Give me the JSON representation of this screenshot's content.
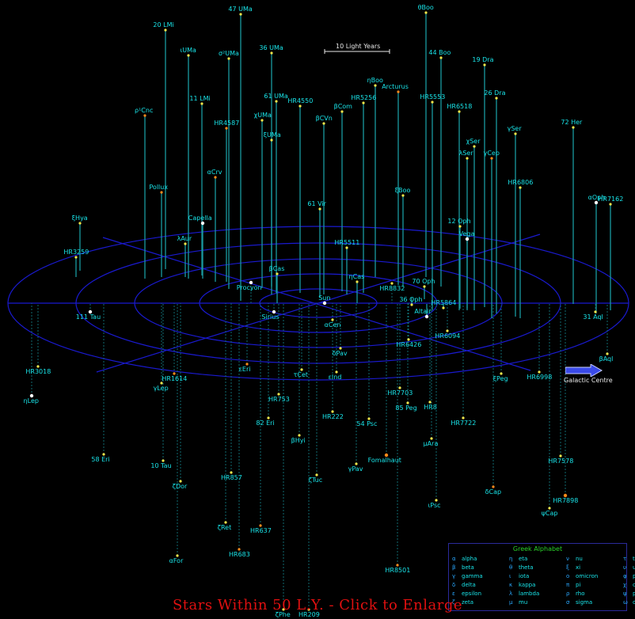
{
  "scale_label": "10 Light Years",
  "direction_label": "Galactic Centre",
  "footer_link": "Stars Within 50 L.Y. - Click to Enlarge",
  "legend": {
    "title": "Greek Alphabet",
    "letters": [
      {
        "sym": "α",
        "name": "alpha"
      },
      {
        "sym": "β",
        "name": "beta"
      },
      {
        "sym": "γ",
        "name": "gamma"
      },
      {
        "sym": "δ",
        "name": "delta"
      },
      {
        "sym": "ε",
        "name": "epsilon"
      },
      {
        "sym": "ζ",
        "name": "zeta"
      },
      {
        "sym": "η",
        "name": "eta"
      },
      {
        "sym": "θ",
        "name": "theta"
      },
      {
        "sym": "ι",
        "name": "iota"
      },
      {
        "sym": "κ",
        "name": "kappa"
      },
      {
        "sym": "λ",
        "name": "lambda"
      },
      {
        "sym": "μ",
        "name": "mu"
      },
      {
        "sym": "ν",
        "name": "nu"
      },
      {
        "sym": "ξ",
        "name": "xi"
      },
      {
        "sym": "ο",
        "name": "omicron"
      },
      {
        "sym": "π",
        "name": "pi"
      },
      {
        "sym": "ρ",
        "name": "rho"
      },
      {
        "sym": "σ",
        "name": "sigma"
      },
      {
        "sym": "τ",
        "name": "tau"
      },
      {
        "sym": "υ",
        "name": "upsilon"
      },
      {
        "sym": "φ",
        "name": "phi"
      },
      {
        "sym": "χ",
        "name": "chi"
      },
      {
        "sym": "ψ",
        "name": "psi"
      },
      {
        "sym": "ω",
        "name": "omega"
      }
    ]
  },
  "stars": [
    {
      "name": "θBoo",
      "above": true
    },
    {
      "name": "47 UMa",
      "above": true
    },
    {
      "name": "20 LMi",
      "above": true
    },
    {
      "name": "ιUMa",
      "above": true
    },
    {
      "name": "σ²UMa",
      "above": true
    },
    {
      "name": "36 UMa",
      "above": true
    },
    {
      "name": "44 Boo",
      "above": true
    },
    {
      "name": "19 Dra",
      "above": true
    },
    {
      "name": "ηBoo",
      "above": true
    },
    {
      "name": "Arcturus",
      "above": true
    },
    {
      "name": "ρ¹Cnc",
      "above": true
    },
    {
      "name": "11 LMi",
      "above": true
    },
    {
      "name": "61 UMa",
      "above": true
    },
    {
      "name": "HR4550",
      "above": true
    },
    {
      "name": "HR5256",
      "above": true
    },
    {
      "name": "HR5553",
      "above": true
    },
    {
      "name": "26 Dra",
      "above": true
    },
    {
      "name": "72 Her",
      "above": true
    },
    {
      "name": "βCVn",
      "above": true
    },
    {
      "name": "βCom",
      "above": true
    },
    {
      "name": "HR6518",
      "above": true
    },
    {
      "name": "HR4587",
      "above": true
    },
    {
      "name": "χUMa",
      "above": true
    },
    {
      "name": "γSer",
      "above": true
    },
    {
      "name": "ξUMa",
      "above": true
    },
    {
      "name": "χSer",
      "above": true
    },
    {
      "name": "λSer",
      "above": true
    },
    {
      "name": "ξBoo",
      "above": true
    },
    {
      "name": "γCep",
      "above": true
    },
    {
      "name": "αCrv",
      "above": true
    },
    {
      "name": "Pollux",
      "above": true
    },
    {
      "name": "HR6806",
      "above": true
    },
    {
      "name": "αOph",
      "above": true
    },
    {
      "name": "HR7162",
      "above": true
    },
    {
      "name": "ξHya",
      "above": true
    },
    {
      "name": "HR3259",
      "above": true
    },
    {
      "name": "Capella",
      "above": true
    },
    {
      "name": "λAur",
      "above": true
    },
    {
      "name": "61 Vir",
      "above": true
    },
    {
      "name": "12 Oph",
      "above": true
    },
    {
      "name": "Vega",
      "above": true
    },
    {
      "name": "HR5511",
      "above": true
    },
    {
      "name": "36 Oph",
      "above": true
    },
    {
      "name": "70 Oph",
      "above": true
    },
    {
      "name": "Sun",
      "above": true
    },
    {
      "name": "Altair",
      "above": true
    },
    {
      "name": "HR5864",
      "above": true
    },
    {
      "name": "31 Aql",
      "above": false
    },
    {
      "name": "HR6426",
      "above": false
    },
    {
      "name": "HR6094",
      "above": false
    },
    {
      "name": "Sirius",
      "above": false
    },
    {
      "name": "αCen",
      "above": false
    },
    {
      "name": "Procyon",
      "above": false
    },
    {
      "name": "111 Tau",
      "above": false
    },
    {
      "name": "HR3018",
      "above": false
    },
    {
      "name": "ηLep",
      "above": false
    },
    {
      "name": "γLep",
      "above": false
    },
    {
      "name": "HR1614",
      "above": false
    },
    {
      "name": "58 Eri",
      "above": false
    },
    {
      "name": "10 Tau",
      "above": false
    },
    {
      "name": "ζDor",
      "above": false
    },
    {
      "name": "HR857",
      "above": false
    },
    {
      "name": "ζRet",
      "above": false
    },
    {
      "name": "HR637",
      "above": false
    },
    {
      "name": "HR683",
      "above": false
    },
    {
      "name": "αFor",
      "above": false
    },
    {
      "name": "HR753",
      "above": false
    },
    {
      "name": "82 Eri",
      "above": false
    },
    {
      "name": "βHyi",
      "above": false
    },
    {
      "name": "ζTuc",
      "above": false
    },
    {
      "name": "HR222",
      "above": false
    },
    {
      "name": "54 Psc",
      "above": false
    },
    {
      "name": "85 Peg",
      "above": false
    },
    {
      "name": "HR7722",
      "above": false
    },
    {
      "name": "μAra",
      "above": false
    },
    {
      "name": "HR7703",
      "above": false
    },
    {
      "name": "Fomalhaut",
      "above": false
    },
    {
      "name": "γPav",
      "above": false
    },
    {
      "name": "ξPeg",
      "above": false
    },
    {
      "name": "HR8501",
      "above": false
    },
    {
      "name": "HR7578",
      "above": false
    },
    {
      "name": "δCap",
      "above": false
    },
    {
      "name": "HR7898",
      "above": false
    },
    {
      "name": "ψCap",
      "above": false
    },
    {
      "name": "HR6998",
      "above": false
    },
    {
      "name": "βAql",
      "above": false
    },
    {
      "name": "ιPsc",
      "above": false
    },
    {
      "name": "HR8832",
      "above": false
    },
    {
      "name": "ζPhe",
      "above": false
    },
    {
      "name": "HR209",
      "above": false
    },
    {
      "name": "βCas",
      "above": true
    },
    {
      "name": "ηCas",
      "above": true
    },
    {
      "name": "εInd",
      "above": false
    },
    {
      "name": "τCet",
      "above": false
    },
    {
      "name": "εEri",
      "above": false
    },
    {
      "name": "δPav",
      "above": false
    },
    {
      "name": "HR8",
      "above": false
    }
  ]
}
